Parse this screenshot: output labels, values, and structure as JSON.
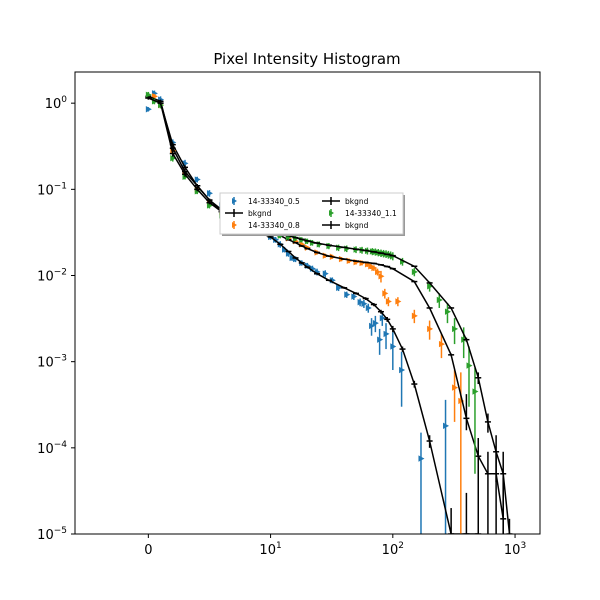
{
  "chart_data": {
    "type": "scatter",
    "title": "Pixel Intensity Histogram",
    "xlabel": "",
    "ylabel": "",
    "xscale": "symlog",
    "yscale": "log",
    "xlim": [
      -6,
      1600
    ],
    "ylim": [
      1e-05,
      2.3
    ],
    "grid": false,
    "legend_position": "center",
    "legend_columns": 2,
    "x_ticks": [
      {
        "value": 0,
        "base": "0",
        "exp": ""
      },
      {
        "value": 10,
        "base": "10",
        "exp": "1"
      },
      {
        "value": 100,
        "base": "10",
        "exp": "2"
      },
      {
        "value": 1000,
        "base": "10",
        "exp": "3"
      }
    ],
    "y_ticks": [
      {
        "value": 1,
        "base": "10",
        "exp": "0"
      },
      {
        "value": 0.1,
        "base": "10",
        "exp": "−1"
      },
      {
        "value": 0.01,
        "base": "10",
        "exp": "−2"
      },
      {
        "value": 0.001,
        "base": "10",
        "exp": "−3"
      },
      {
        "value": 0.0001,
        "base": "10",
        "exp": "−4"
      },
      {
        "value": 1e-05,
        "base": "10",
        "exp": "−5"
      }
    ],
    "series": [
      {
        "name": "14-33340_0.5",
        "kind": "errorbar",
        "color": "#1f77b4",
        "x": [
          0,
          0.5,
          1,
          2,
          3,
          4,
          5,
          6,
          7,
          8,
          9,
          10,
          11,
          12,
          13,
          14,
          15,
          16,
          18,
          20,
          22,
          24,
          28,
          32,
          36,
          42,
          48,
          54,
          58,
          63,
          67,
          72,
          78,
          82,
          88,
          100,
          118,
          170,
          270
        ],
        "y": [
          0.85,
          1.3,
          1.1,
          0.35,
          0.2,
          0.13,
          0.09,
          0.065,
          0.05,
          0.043,
          0.036,
          0.028,
          0.026,
          0.023,
          0.02,
          0.018,
          0.016,
          0.0155,
          0.014,
          0.013,
          0.012,
          0.011,
          0.0105,
          0.0088,
          0.0072,
          0.006,
          0.0057,
          0.0049,
          0.0047,
          0.0042,
          0.0026,
          0.0028,
          0.0018,
          0.0032,
          0.0021,
          0.0015,
          0.0008,
          7.5e-05,
          0.00018
        ],
        "yerr_low": [
          0.05,
          0.1,
          0.1,
          0.03,
          0.02,
          0.01,
          0.008,
          0.005,
          0.004,
          0.003,
          0.003,
          0.002,
          0.002,
          0.002,
          0.0015,
          0.0015,
          0.0012,
          0.0012,
          0.001,
          0.001,
          0.001,
          0.001,
          0.001,
          0.0007,
          0.0006,
          0.0005,
          0.0005,
          0.0005,
          0.0005,
          0.0005,
          0.0006,
          0.0006,
          0.0006,
          0.0006,
          0.0007,
          0.0007,
          0.0005,
          7.4e-05,
          0.000178
        ],
        "yerr_high": [
          0.05,
          0.1,
          0.1,
          0.03,
          0.02,
          0.01,
          0.008,
          0.005,
          0.004,
          0.003,
          0.003,
          0.002,
          0.002,
          0.002,
          0.0015,
          0.0015,
          0.0012,
          0.0012,
          0.001,
          0.001,
          0.001,
          0.001,
          0.001,
          0.0007,
          0.0006,
          0.0005,
          0.0005,
          0.0005,
          0.0005,
          0.0005,
          0.0006,
          0.0006,
          0.0006,
          0.0006,
          0.0007,
          0.0007,
          0.0005,
          7.5e-05,
          0.00018
        ]
      },
      {
        "name": "bkgnd",
        "kind": "line",
        "color": "#000000",
        "x": [
          0,
          1,
          2,
          3,
          4,
          5,
          6,
          7,
          8,
          10,
          12,
          14,
          16,
          18,
          20,
          24,
          30,
          40,
          50,
          60,
          70,
          80,
          90,
          100,
          120,
          150,
          200,
          300,
          400,
          500
        ],
        "y": [
          1.15,
          1.0,
          0.33,
          0.18,
          0.11,
          0.075,
          0.055,
          0.043,
          0.036,
          0.028,
          0.023,
          0.019,
          0.016,
          0.014,
          0.0125,
          0.0105,
          0.0088,
          0.0072,
          0.0062,
          0.0054,
          0.0046,
          0.0038,
          0.0031,
          0.0024,
          0.0014,
          0.00055,
          0.00012,
          1e-05,
          1e-05,
          1e-05
        ],
        "yerr_low": [
          0.05,
          0.05,
          0.02,
          0.01,
          0.005,
          0.003,
          0.002,
          0.0015,
          0.001,
          0.0008,
          0.0006,
          0.0005,
          0.0004,
          0.0004,
          0.0003,
          0.0003,
          0.0002,
          0.0002,
          0.0002,
          0.0002,
          0.0002,
          0.0002,
          0.0002,
          0.0002,
          0.0001,
          5e-05,
          2e-05,
          5e-06,
          5e-06,
          5e-06
        ],
        "yerr_high": [
          0.05,
          0.05,
          0.02,
          0.01,
          0.005,
          0.003,
          0.002,
          0.0015,
          0.001,
          0.0008,
          0.0006,
          0.0005,
          0.0004,
          0.0004,
          0.0003,
          0.0003,
          0.0002,
          0.0002,
          0.0002,
          0.0002,
          0.0002,
          0.0002,
          0.0002,
          0.0002,
          0.0001,
          5e-05,
          2e-05,
          1e-05,
          2e-05,
          3e-05
        ]
      },
      {
        "name": "14-33340_0.8",
        "kind": "errorbar",
        "color": "#ff7f0e",
        "x": [
          0.5,
          1,
          2,
          3,
          4,
          5,
          6,
          7,
          8,
          10,
          12,
          14,
          16,
          18,
          20,
          24,
          28,
          32,
          38,
          44,
          50,
          56,
          62,
          66,
          70,
          75,
          80,
          86,
          92,
          110,
          150,
          200,
          250,
          320,
          360
        ],
        "y": [
          1.2,
          0.95,
          0.28,
          0.15,
          0.1,
          0.07,
          0.055,
          0.045,
          0.04,
          0.032,
          0.03,
          0.027,
          0.025,
          0.023,
          0.021,
          0.0185,
          0.017,
          0.0165,
          0.0155,
          0.0148,
          0.0143,
          0.014,
          0.0135,
          0.0128,
          0.0122,
          0.011,
          0.0098,
          0.0062,
          0.005,
          0.005,
          0.0034,
          0.0024,
          0.0016,
          0.0005,
          0.00035
        ],
        "yerr_low": [
          0.08,
          0.08,
          0.02,
          0.01,
          0.006,
          0.005,
          0.004,
          0.003,
          0.003,
          0.002,
          0.002,
          0.0015,
          0.0015,
          0.0012,
          0.001,
          0.001,
          0.0009,
          0.0009,
          0.0009,
          0.0009,
          0.0009,
          0.0009,
          0.0009,
          0.0009,
          0.0009,
          0.001,
          0.0015,
          0.0008,
          0.0006,
          0.0006,
          0.0006,
          0.0006,
          0.0005,
          0.0003,
          0.00034
        ],
        "yerr_high": [
          0.08,
          0.08,
          0.02,
          0.01,
          0.006,
          0.005,
          0.004,
          0.003,
          0.003,
          0.002,
          0.002,
          0.0015,
          0.0015,
          0.0012,
          0.001,
          0.001,
          0.0009,
          0.0009,
          0.0009,
          0.0009,
          0.0009,
          0.0009,
          0.0009,
          0.0009,
          0.0009,
          0.001,
          0.0015,
          0.0008,
          0.0006,
          0.0006,
          0.0006,
          0.0006,
          0.0005,
          0.0003,
          0.0004
        ]
      },
      {
        "name": "bkgnd",
        "kind": "line",
        "color": "#000000",
        "x": [
          0,
          1,
          2,
          3,
          4,
          5,
          6,
          7,
          8,
          10,
          12,
          14,
          16,
          18,
          20,
          24,
          30,
          40,
          50,
          60,
          70,
          80,
          90,
          100,
          150,
          200,
          300,
          400,
          500,
          600,
          700,
          800
        ],
        "y": [
          1.2,
          1.05,
          0.3,
          0.16,
          0.11,
          0.075,
          0.058,
          0.047,
          0.04,
          0.033,
          0.029,
          0.026,
          0.024,
          0.022,
          0.0205,
          0.0185,
          0.0168,
          0.0155,
          0.0147,
          0.0142,
          0.0138,
          0.0133,
          0.0127,
          0.012,
          0.0085,
          0.0042,
          0.0012,
          0.00022,
          8e-05,
          5e-05,
          5e-05,
          1.5e-05
        ],
        "yerr_low": [
          0.05,
          0.05,
          0.02,
          0.01,
          0.005,
          0.003,
          0.002,
          0.002,
          0.001,
          0.001,
          0.0008,
          0.0006,
          0.0005,
          0.0005,
          0.0004,
          0.0004,
          0.0003,
          0.0003,
          0.0003,
          0.0003,
          0.0003,
          0.0003,
          0.0003,
          0.0003,
          0.0002,
          0.0001,
          4e-05,
          6e-05,
          5e-05,
          4e-05,
          4e-05,
          1e-05
        ],
        "yerr_high": [
          0.05,
          0.05,
          0.02,
          0.01,
          0.005,
          0.003,
          0.002,
          0.002,
          0.001,
          0.001,
          0.0008,
          0.0006,
          0.0005,
          0.0005,
          0.0004,
          0.0004,
          0.0003,
          0.0003,
          0.0003,
          0.0003,
          0.0003,
          0.0003,
          0.0003,
          0.0003,
          0.0002,
          0.0001,
          4e-05,
          0.0002,
          5e-05,
          4e-05,
          4e-05,
          3e-05
        ]
      },
      {
        "name": "14-33340_1.1",
        "kind": "errorbar",
        "color": "#2ca02c",
        "x": [
          0,
          0.5,
          1,
          2,
          3,
          4,
          5,
          6,
          7,
          8,
          10,
          12,
          14,
          16,
          18,
          20,
          22,
          25,
          30,
          36,
          42,
          50,
          56,
          62,
          68,
          72,
          76,
          80,
          84,
          88,
          92,
          96,
          100,
          120,
          150,
          200,
          240,
          280,
          320,
          380,
          420,
          470
        ],
        "y": [
          1.25,
          1.05,
          0.95,
          0.23,
          0.14,
          0.095,
          0.065,
          0.05,
          0.043,
          0.037,
          0.031,
          0.029,
          0.028,
          0.027,
          0.026,
          0.025,
          0.024,
          0.023,
          0.022,
          0.021,
          0.0205,
          0.02,
          0.0197,
          0.0193,
          0.019,
          0.0188,
          0.0185,
          0.0182,
          0.018,
          0.0178,
          0.0175,
          0.0172,
          0.0168,
          0.0145,
          0.011,
          0.0075,
          0.0052,
          0.0038,
          0.0024,
          0.0018,
          0.0009,
          0.00045
        ],
        "yerr_low": [
          0.1,
          0.08,
          0.08,
          0.02,
          0.01,
          0.007,
          0.005,
          0.004,
          0.003,
          0.003,
          0.002,
          0.002,
          0.002,
          0.0018,
          0.0018,
          0.0018,
          0.0018,
          0.0018,
          0.0018,
          0.0018,
          0.0018,
          0.0018,
          0.0018,
          0.0018,
          0.0018,
          0.0018,
          0.0018,
          0.0018,
          0.0018,
          0.0018,
          0.0018,
          0.0018,
          0.0018,
          0.0015,
          0.0012,
          0.001,
          0.001,
          0.001,
          0.0008,
          0.0007,
          0.0006,
          0.0004
        ],
        "yerr_high": [
          0.1,
          0.08,
          0.08,
          0.02,
          0.01,
          0.007,
          0.005,
          0.004,
          0.003,
          0.003,
          0.002,
          0.002,
          0.002,
          0.0018,
          0.0018,
          0.0018,
          0.0018,
          0.0018,
          0.0018,
          0.0018,
          0.0018,
          0.0018,
          0.0018,
          0.0018,
          0.0018,
          0.0018,
          0.0018,
          0.0018,
          0.0018,
          0.0018,
          0.0018,
          0.0018,
          0.0018,
          0.0015,
          0.0012,
          0.001,
          0.001,
          0.001,
          0.0008,
          0.0007,
          0.0006,
          0.0004
        ]
      },
      {
        "name": "bkgnd",
        "kind": "line",
        "color": "#000000",
        "x": [
          0,
          1,
          2,
          3,
          4,
          5,
          6,
          7,
          8,
          10,
          12,
          14,
          16,
          18,
          20,
          24,
          30,
          40,
          50,
          60,
          70,
          80,
          90,
          100,
          150,
          200,
          300,
          400,
          500,
          600,
          700,
          800,
          900
        ],
        "y": [
          1.15,
          1.0,
          0.26,
          0.15,
          0.1,
          0.07,
          0.055,
          0.046,
          0.04,
          0.034,
          0.031,
          0.029,
          0.0275,
          0.0263,
          0.0252,
          0.0238,
          0.0225,
          0.0212,
          0.0202,
          0.0195,
          0.0188,
          0.0182,
          0.0176,
          0.017,
          0.0128,
          0.0082,
          0.0042,
          0.0018,
          0.00065,
          0.0002,
          9e-05,
          5e-05,
          1e-05
        ],
        "yerr_low": [
          0.05,
          0.05,
          0.02,
          0.01,
          0.005,
          0.003,
          0.002,
          0.002,
          0.001,
          0.001,
          0.0008,
          0.0006,
          0.0005,
          0.0005,
          0.0004,
          0.0004,
          0.0003,
          0.0003,
          0.0003,
          0.0003,
          0.0003,
          0.0003,
          0.0003,
          0.0003,
          0.0002,
          0.0002,
          0.0001,
          0.0001,
          0.0001,
          5e-05,
          5e-05,
          4e-05,
          5e-06
        ],
        "yerr_high": [
          0.05,
          0.05,
          0.02,
          0.01,
          0.005,
          0.003,
          0.002,
          0.002,
          0.001,
          0.001,
          0.0008,
          0.0006,
          0.0005,
          0.0005,
          0.0004,
          0.0004,
          0.0003,
          0.0003,
          0.0003,
          0.0003,
          0.0003,
          0.0003,
          0.0003,
          0.0003,
          0.0002,
          0.0002,
          0.0001,
          0.0001,
          0.0001,
          5e-05,
          5e-05,
          4e-05,
          5e-06
        ]
      }
    ]
  }
}
